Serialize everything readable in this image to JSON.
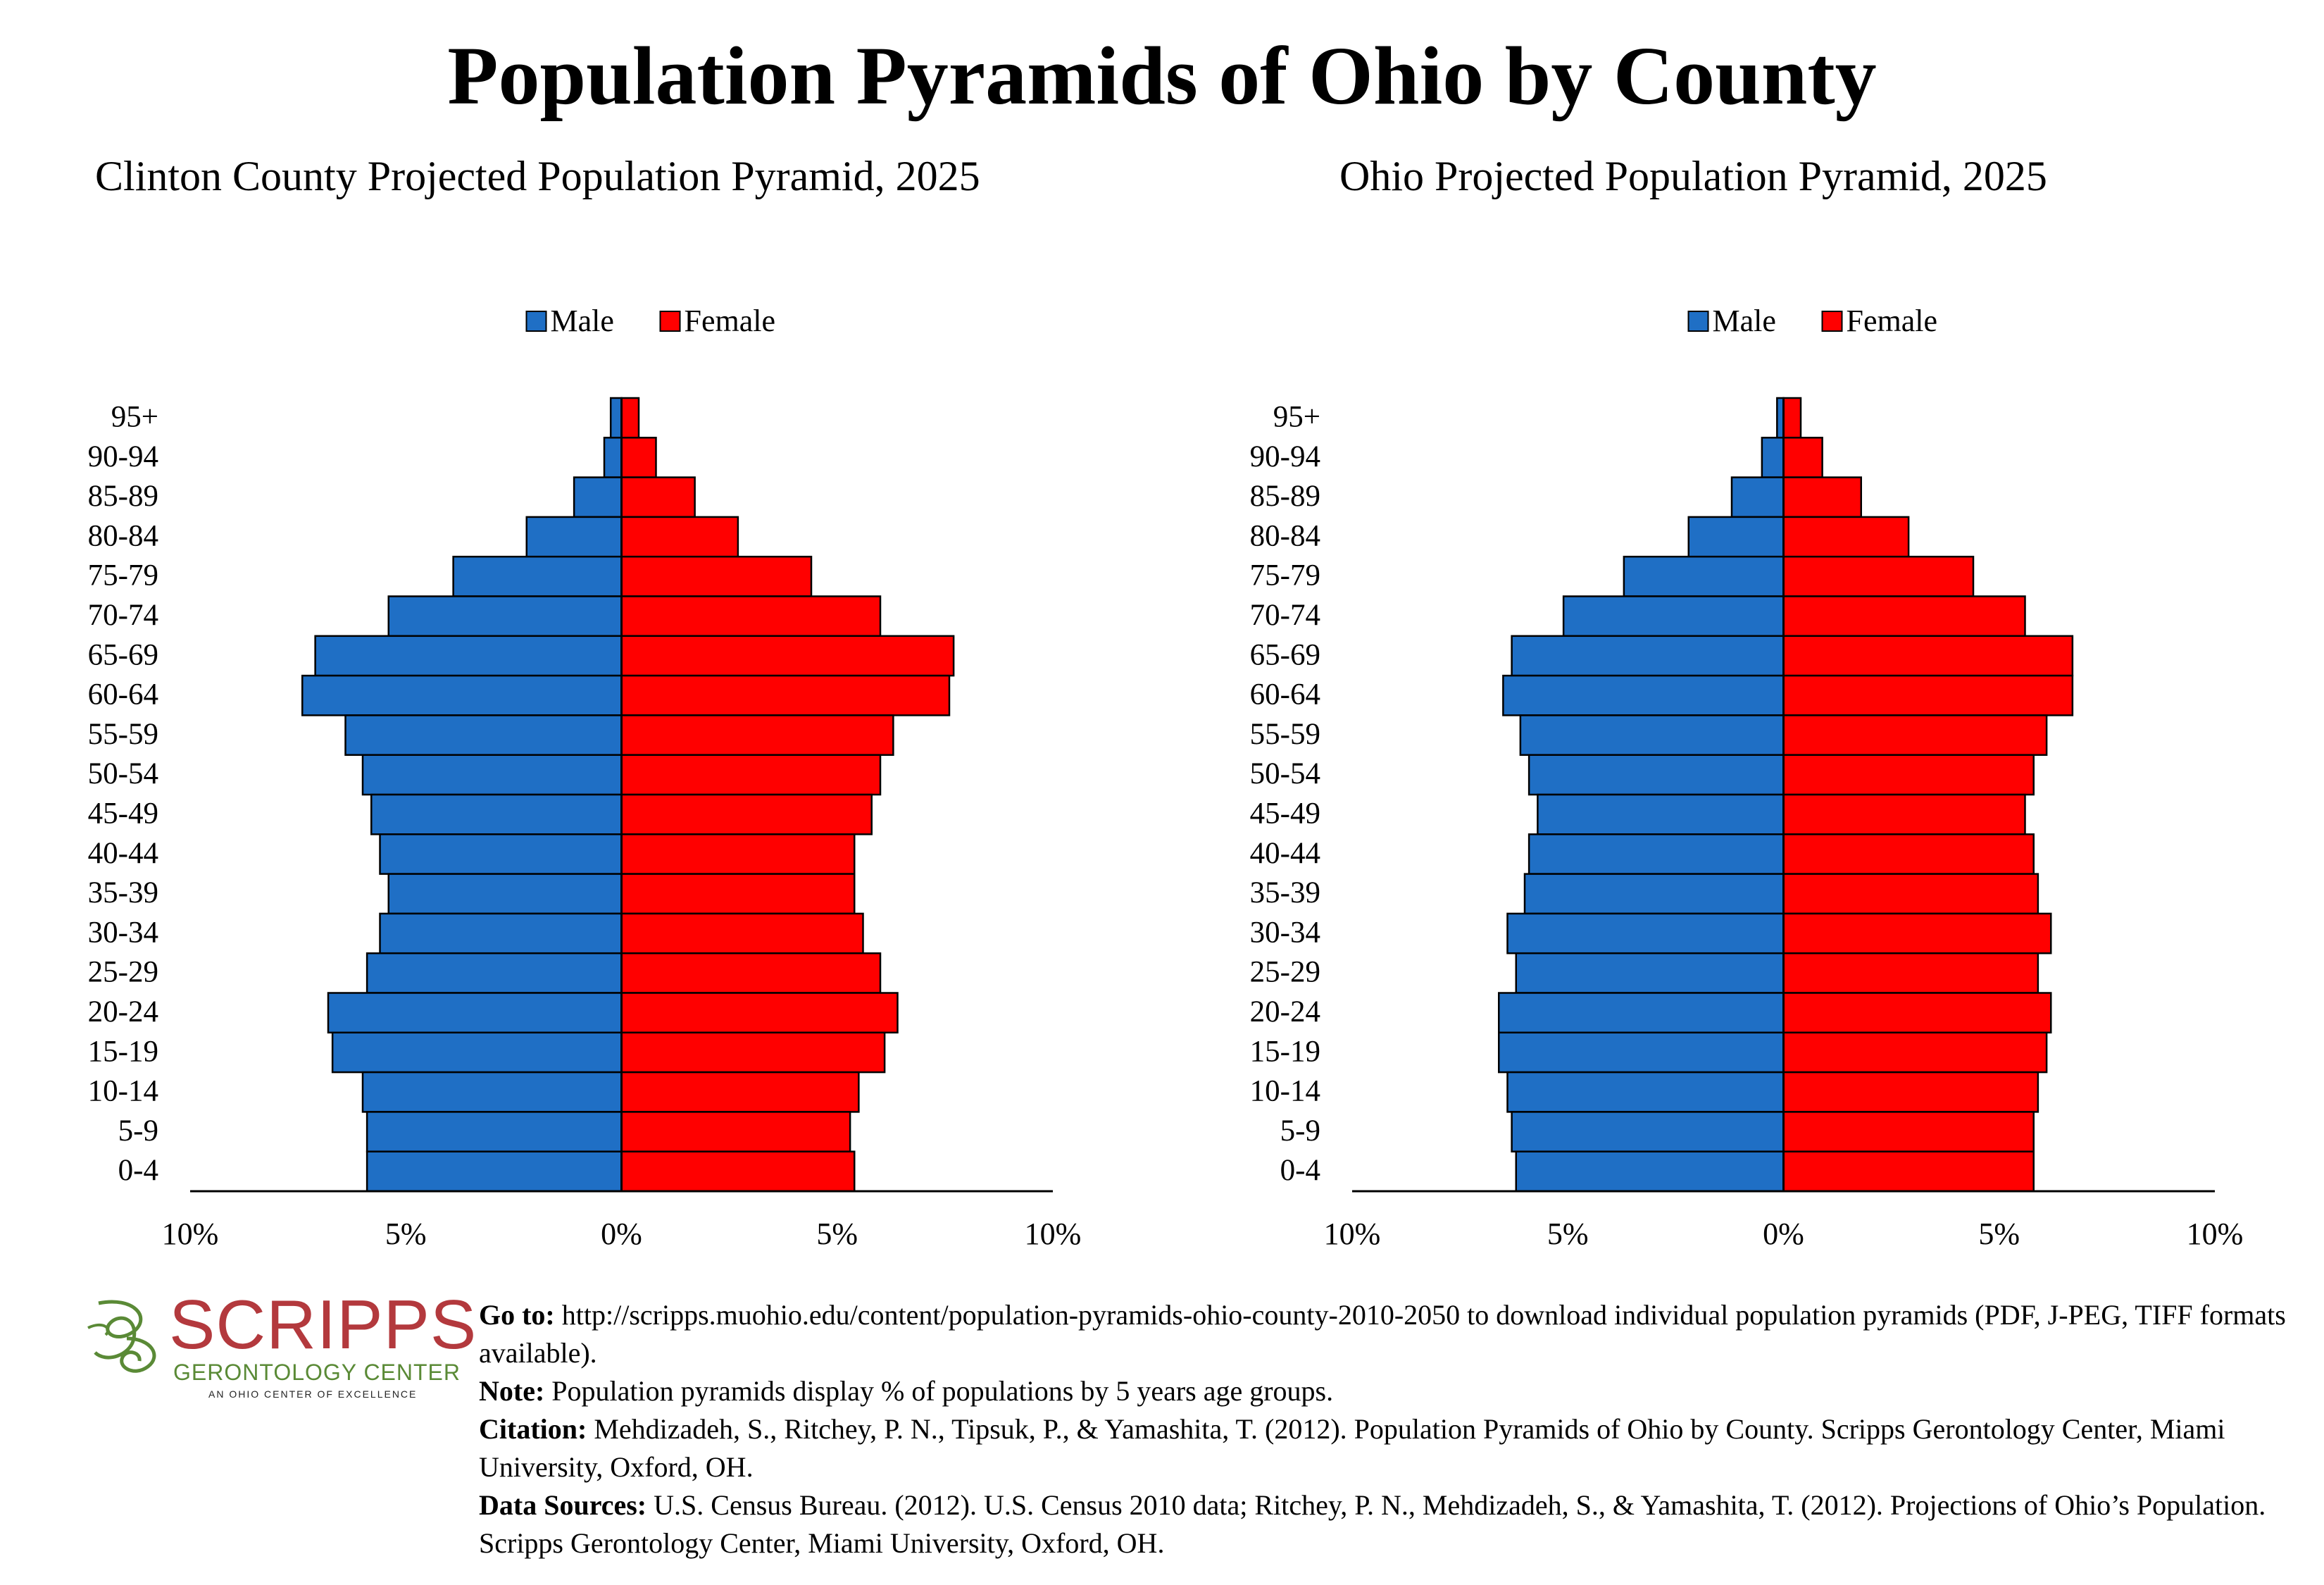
{
  "title": "Population Pyramids of Ohio by County",
  "legend": {
    "male": "Male",
    "female": "Female"
  },
  "colors": {
    "male": "#1f6fc5",
    "female": "#ff0000",
    "outline": "#000000"
  },
  "x_ticks": [
    "10%",
    "5%",
    "0%",
    "5%",
    "10%"
  ],
  "chart_data": [
    {
      "type": "bar",
      "title": "Clinton County Projected Population Pyramid, 2025",
      "orientation": "horizontal-diverging",
      "unit": "%",
      "xlim": [
        -10,
        10
      ],
      "legend_position": "top-center",
      "categories": [
        "95+",
        "90-94",
        "85-89",
        "80-84",
        "75-79",
        "70-74",
        "65-69",
        "60-64",
        "55-59",
        "50-54",
        "45-49",
        "40-44",
        "35-39",
        "30-34",
        "25-29",
        "20-24",
        "15-19",
        "10-14",
        "5-9",
        "0-4"
      ],
      "series": [
        {
          "name": "Male",
          "values": [
            0.25,
            0.4,
            1.1,
            2.2,
            3.9,
            5.4,
            7.1,
            7.4,
            6.4,
            6.0,
            5.8,
            5.6,
            5.4,
            5.6,
            5.9,
            6.8,
            6.7,
            6.0,
            5.9,
            5.9
          ]
        },
        {
          "name": "Female",
          "values": [
            0.4,
            0.8,
            1.7,
            2.7,
            4.4,
            6.0,
            7.7,
            7.6,
            6.3,
            6.0,
            5.8,
            5.4,
            5.4,
            5.6,
            6.0,
            6.4,
            6.1,
            5.5,
            5.3,
            5.4
          ]
        }
      ]
    },
    {
      "type": "bar",
      "title": "Ohio Projected Population Pyramid, 2025",
      "orientation": "horizontal-diverging",
      "unit": "%",
      "xlim": [
        -10,
        10
      ],
      "legend_position": "top-center",
      "categories": [
        "95+",
        "90-94",
        "85-89",
        "80-84",
        "75-79",
        "70-74",
        "65-69",
        "60-64",
        "55-59",
        "50-54",
        "45-49",
        "40-44",
        "35-39",
        "30-34",
        "25-29",
        "20-24",
        "15-19",
        "10-14",
        "5-9",
        "0-4"
      ],
      "series": [
        {
          "name": "Male",
          "values": [
            0.15,
            0.5,
            1.2,
            2.2,
            3.7,
            5.1,
            6.3,
            6.5,
            6.1,
            5.9,
            5.7,
            5.9,
            6.0,
            6.4,
            6.2,
            6.6,
            6.6,
            6.4,
            6.3,
            6.2
          ]
        },
        {
          "name": "Female",
          "values": [
            0.4,
            0.9,
            1.8,
            2.9,
            4.4,
            5.6,
            6.7,
            6.7,
            6.1,
            5.8,
            5.6,
            5.8,
            5.9,
            6.2,
            5.9,
            6.2,
            6.1,
            5.9,
            5.8,
            5.8
          ]
        }
      ]
    }
  ],
  "logo": {
    "name": "SCRIPPS",
    "subtitle": "GERONTOLOGY CENTER",
    "tagline": "AN OHIO CENTER OF EXCELLENCE"
  },
  "notes": [
    {
      "label": "Go to:",
      "text": " http://scripps.muohio.edu/content/population-pyramids-ohio-county-2010-2050 to download individual population pyramids (PDF, J-PEG, TIFF formats available)."
    },
    {
      "label": "Note:",
      "text": " Population pyramids display % of populations by 5 years age groups."
    },
    {
      "label": "Citation:",
      "text": " Mehdizadeh, S., Ritchey, P. N., Tipsuk, P., & Yamashita, T. (2012). Population Pyramids of Ohio by County. Scripps Gerontology Center, Miami University, Oxford, OH."
    },
    {
      "label": "Data Sources:",
      "text": " U.S. Census Bureau. (2012). U.S. Census 2010 data; Ritchey, P. N., Mehdizadeh, S., & Yamashita, T. (2012). Projections of Ohio’s Population. Scripps Gerontology Center, Miami University, Oxford, OH."
    }
  ]
}
